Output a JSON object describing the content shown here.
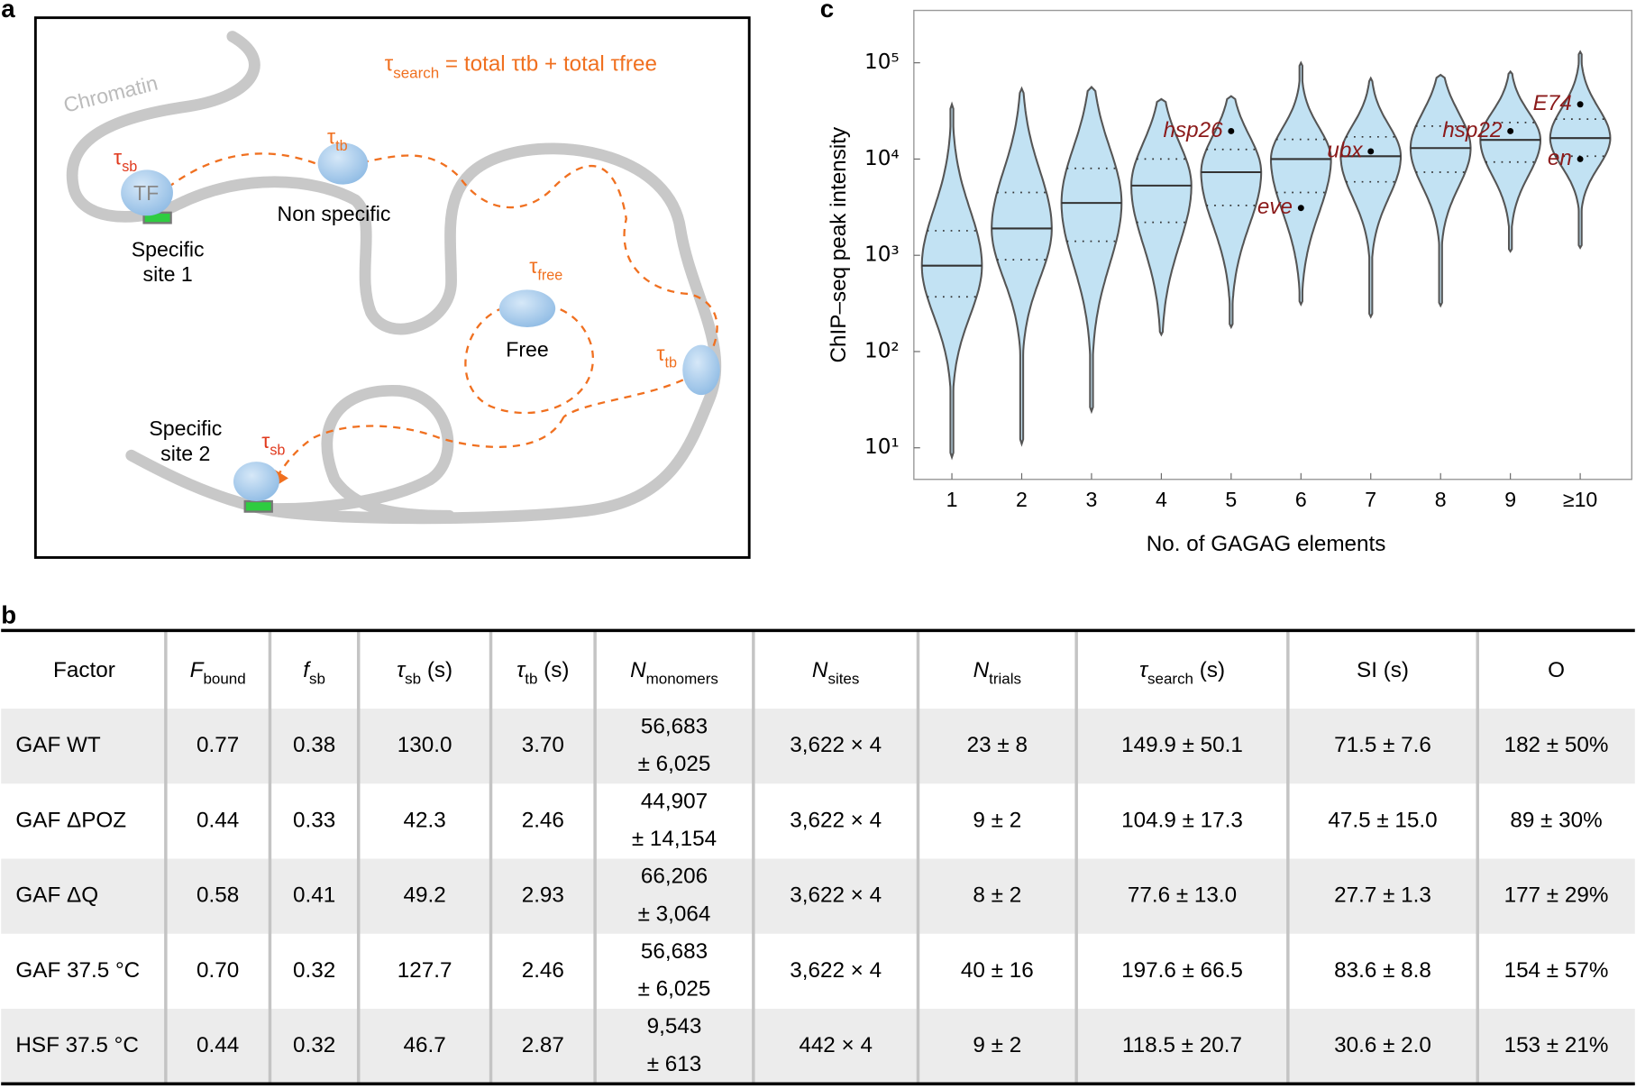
{
  "panel_labels": [
    "a",
    "b",
    "c"
  ],
  "diagram": {
    "equation": [
      "τ",
      "search",
      " = total τ",
      "tb",
      " + total τ",
      "free"
    ],
    "chromatin": "Chromatin",
    "tf": "TF",
    "non_specific": "Non specific",
    "specific_site_1": [
      "Specific",
      "site 1"
    ],
    "free": "Free",
    "specific_site_2": [
      "Specific",
      "site 2"
    ],
    "tau_labels": [
      [
        "τ",
        "sb"
      ],
      [
        "τ",
        "tb"
      ],
      [
        "τ",
        "free"
      ],
      [
        "τ",
        "tb"
      ],
      [
        "τ",
        "sb"
      ]
    ]
  },
  "table": {
    "headers": [
      [
        "Factor"
      ],
      [
        "F",
        "bound"
      ],
      [
        "f",
        "sb"
      ],
      [
        "τ",
        "sb",
        " (s)"
      ],
      [
        "τ",
        "tb",
        " (s)"
      ],
      [
        "N",
        "monomers"
      ],
      [
        "N",
        "sites"
      ],
      [
        "N",
        "trials"
      ],
      [
        "τ",
        "search",
        " (s)"
      ],
      [
        "SI (s)"
      ],
      [
        "O"
      ]
    ],
    "rows": [
      [
        "GAF WT",
        "0.77",
        "0.38",
        "130.0",
        "3.70",
        [
          "56,683",
          "± 6,025"
        ],
        "3,622 × 4",
        "23 ± 8",
        "149.9 ± 50.1",
        "71.5 ± 7.6",
        "182 ± 50%"
      ],
      [
        "GAF ΔPOZ",
        "0.44",
        "0.33",
        "42.3",
        "2.46",
        [
          "44,907",
          "± 14,154"
        ],
        "3,622 × 4",
        "9 ± 2",
        "104.9 ± 17.3",
        "47.5 ± 15.0",
        "89 ± 30%"
      ],
      [
        "GAF ΔQ",
        "0.58",
        "0.41",
        "49.2",
        "2.93",
        [
          "66,206",
          "± 3,064"
        ],
        "3,622 × 4",
        "8 ± 2",
        "77.6 ± 13.0",
        "27.7 ± 1.3",
        "177 ± 29%"
      ],
      [
        "GAF 37.5 °C",
        "0.70",
        "0.32",
        "127.7",
        "2.46",
        [
          "56,683",
          "± 6,025"
        ],
        "3,622 × 4",
        "40 ± 16",
        "197.6 ± 66.5",
        "83.6 ± 8.8",
        "154 ± 57%"
      ],
      [
        "HSF 37.5 °C",
        "0.44",
        "0.32",
        "46.7",
        "2.87",
        [
          "9,543",
          "± 613"
        ],
        "442 × 4",
        "9 ± 2",
        "118.5 ± 20.7",
        "30.6 ± 2.0",
        "153 ± 21%"
      ]
    ]
  },
  "chart_data": {
    "type": "violin",
    "y_label": "ChIP–seq peak intensity",
    "x_label": "No. of GAGAG elements",
    "categories": [
      "1",
      "2",
      "3",
      "4",
      "5",
      "6",
      "7",
      "8",
      "9",
      "≥10"
    ],
    "min": [
      8,
      11,
      24,
      150,
      180,
      310,
      230,
      300,
      1100,
      1200
    ],
    "q1": [
      370,
      900,
      1400,
      2200,
      3300,
      4500,
      5800,
      7300,
      9300,
      10700
    ],
    "median": [
      780,
      1900,
      3500,
      5300,
      7300,
      10000,
      10700,
      13000,
      15800,
      16500
    ],
    "q3": [
      1800,
      4500,
      8000,
      10000,
      12600,
      16000,
      17000,
      22000,
      24000,
      26000
    ],
    "max": [
      37000,
      54000,
      56000,
      42000,
      45000,
      100000,
      69000,
      75000,
      81000,
      130000
    ],
    "color": "#8fcbea",
    "line_color": "#555555",
    "y_log": true,
    "ylim": [
      4.7,
      350000
    ],
    "yticks": [
      {
        "value": 10,
        "label": "10¹"
      },
      {
        "value": 100,
        "label": "10²"
      },
      {
        "value": 1000,
        "label": "10³"
      },
      {
        "value": 10000,
        "label": "10⁴"
      },
      {
        "value": 100000,
        "label": "10⁵"
      }
    ],
    "annotations": [
      {
        "category": "5",
        "value": 19500,
        "label": "hsp26"
      },
      {
        "category": "6",
        "value": 3100,
        "label": "eve"
      },
      {
        "category": "7",
        "value": 12000,
        "label": "ubx"
      },
      {
        "category": "9",
        "value": 19500,
        "label": "hsp22"
      },
      {
        "category": "≥10",
        "value": 37000,
        "label": "E74"
      },
      {
        "category": "≥10",
        "value": 10000,
        "label": "en"
      }
    ],
    "annotation_color": "#8b1a1a"
  }
}
